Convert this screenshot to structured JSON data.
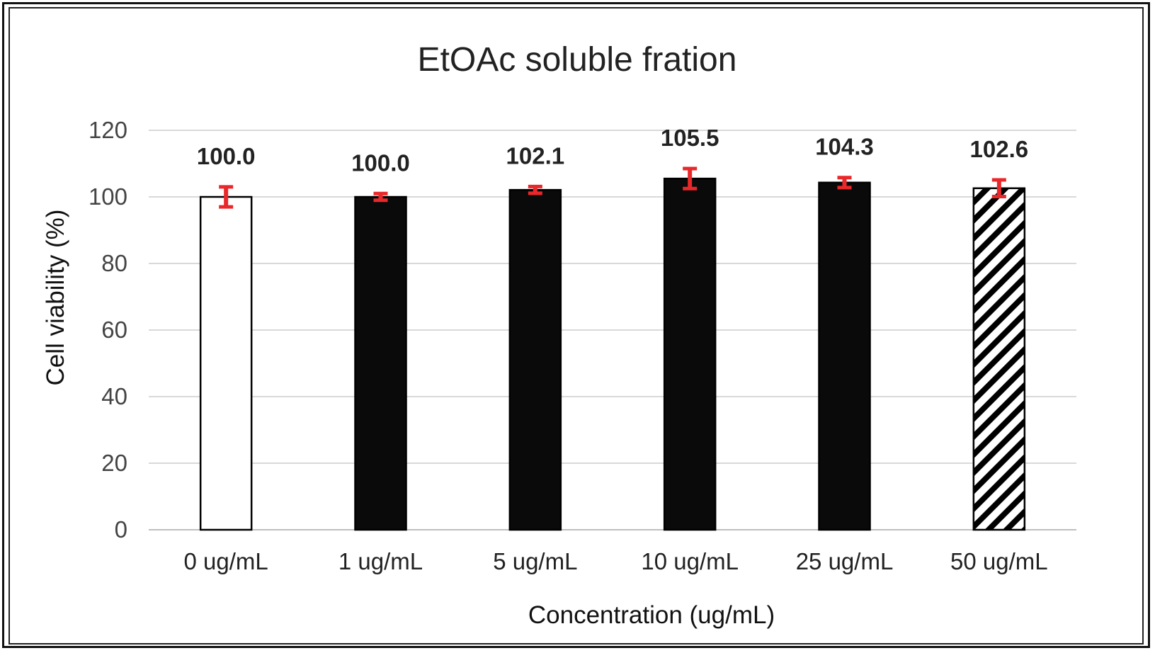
{
  "chart_data": {
    "type": "bar",
    "title": "EtOAc soluble fration",
    "xlabel": "Concentration  (ug/mL)",
    "ylabel": "Cell viability  (%)",
    "categories": [
      "0 ug/mL",
      "1 ug/mL",
      "5 ug/mL",
      "10 ug/mL",
      "25 ug/mL",
      "50 ug/mL"
    ],
    "values": [
      100.0,
      100.0,
      102.1,
      105.5,
      104.3,
      102.6
    ],
    "data_labels": [
      "100.0",
      "100.0",
      "102.1",
      "105.5",
      "104.3",
      "102.6"
    ],
    "errors": [
      3.0,
      1.0,
      1.0,
      3.0,
      1.5,
      2.5
    ],
    "bar_styles": [
      "white",
      "solid",
      "solid",
      "solid",
      "solid",
      "hatched"
    ],
    "ylim": [
      0,
      120
    ],
    "yticks": [
      "0",
      "20",
      "40",
      "60",
      "80",
      "100",
      "120"
    ],
    "grid": true,
    "legend": "none",
    "colors": {
      "bar_fill": "#0a0a0a",
      "bar_outline": "#000000",
      "error_bar": "#e8282a",
      "grid": "#d9d9d9"
    }
  }
}
